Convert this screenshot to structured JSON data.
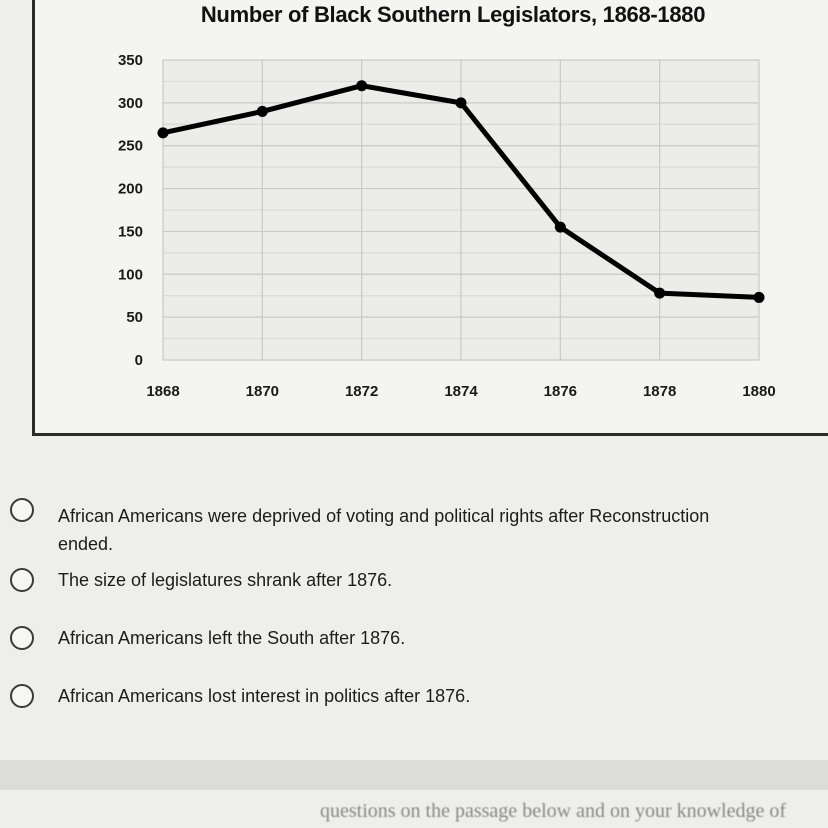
{
  "chart_data": {
    "type": "line",
    "title": "Number of Black Southern Legislators, 1868-1880",
    "xlabel": "",
    "ylabel": "",
    "categories": [
      "1868",
      "1870",
      "1872",
      "1874",
      "1876",
      "1878",
      "1880"
    ],
    "values": [
      265,
      290,
      320,
      300,
      155,
      78,
      73
    ],
    "ylim": [
      0,
      350
    ],
    "yticks": [
      "350",
      "300",
      "250",
      "200",
      "150",
      "100",
      "50",
      "0"
    ],
    "grid": true,
    "line_color": "#000000"
  },
  "question": {
    "options": [
      {
        "lines": [
          "African Americans were deprived of voting and political rights after Reconstruction",
          "ended."
        ]
      },
      {
        "lines": [
          "The size of legislatures shrank after 1876."
        ]
      },
      {
        "lines": [
          "African Americans left the South after 1876."
        ]
      },
      {
        "lines": [
          "African Americans lost interest in politics after 1876."
        ]
      }
    ]
  },
  "footer": {
    "partial_text": "questions on the passage below and on your knowledge of"
  }
}
